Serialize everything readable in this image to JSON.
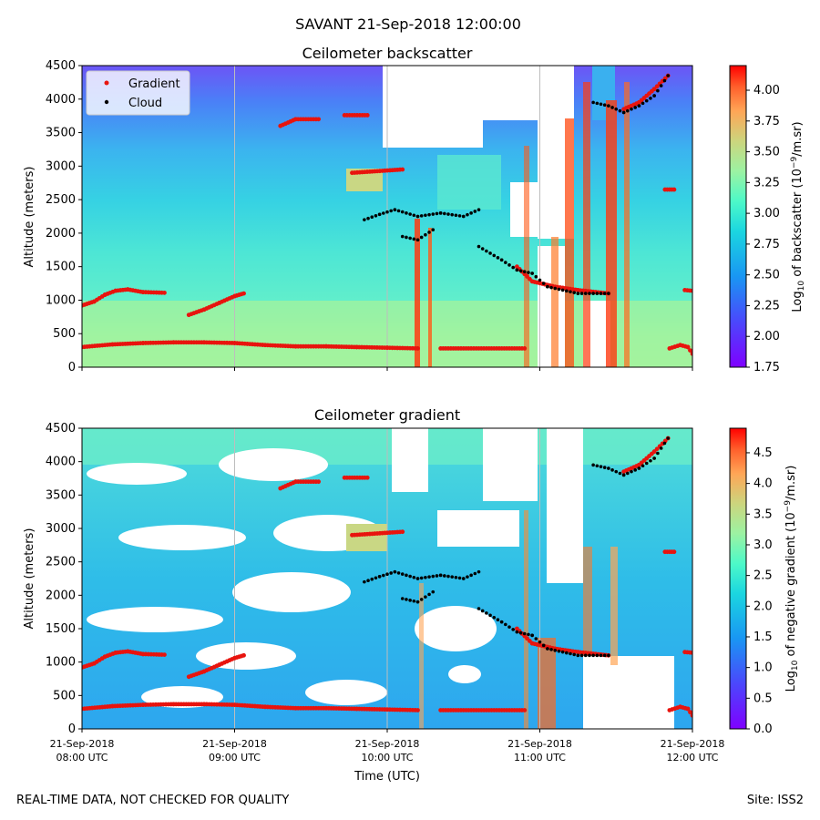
{
  "suptitle": "SAVANT 21-Sep-2018 12:00:00",
  "footer_left": "REAL-TIME DATA, NOT CHECKED FOR QUALITY",
  "footer_right": "Site: ISS2",
  "xlabel": "Time (UTC)",
  "x_ticks": [
    {
      "line1": "21-Sep-2018",
      "line2": "08:00 UTC",
      "hour": 8
    },
    {
      "line1": "21-Sep-2018",
      "line2": "09:00 UTC",
      "hour": 9
    },
    {
      "line1": "21-Sep-2018",
      "line2": "10:00 UTC",
      "hour": 10
    },
    {
      "line1": "21-Sep-2018",
      "line2": "11:00 UTC",
      "hour": 11
    },
    {
      "line1": "21-Sep-2018",
      "line2": "12:00 UTC",
      "hour": 12
    }
  ],
  "legend": {
    "placement": "top-left",
    "gradient": "Gradient",
    "cloud": "Cloud"
  },
  "colors": {
    "gradient_marker": "#e8140e",
    "cloud_marker": "#000000",
    "colormap": "rainbow"
  },
  "chart_data": [
    {
      "type": "heatmap",
      "title": "Ceilometer backscatter",
      "ylabel": "Altitude (meters)",
      "xlim_hours": [
        8,
        12
      ],
      "ylim": [
        0,
        4500
      ],
      "y_ticks": [
        0,
        500,
        1000,
        1500,
        2000,
        2500,
        3000,
        3500,
        4000,
        4500
      ],
      "colorbar": {
        "label": "Log10 of backscatter (10^-9/m.sr)",
        "range": [
          1.75,
          4.2
        ],
        "ticks": [
          1.75,
          2.0,
          2.25,
          2.5,
          2.75,
          3.0,
          3.25,
          3.5,
          3.75,
          4.0
        ],
        "tick_labels": [
          "1.75",
          "2.00",
          "2.25",
          "2.50",
          "2.75",
          "3.00",
          "3.25",
          "3.50",
          "3.75",
          "4.00"
        ]
      },
      "gradient_layers": [
        {
          "x": [
            8.0,
            8.2,
            8.4,
            8.6,
            8.8,
            9.0,
            9.2,
            9.4,
            9.6,
            9.8,
            10.0,
            10.2
          ],
          "y": [
            300,
            340,
            360,
            370,
            370,
            360,
            330,
            310,
            310,
            300,
            290,
            280
          ]
        },
        {
          "x": [
            8.0,
            8.08,
            8.15,
            8.22,
            8.3,
            8.4,
            8.54
          ],
          "y": [
            920,
            980,
            1080,
            1140,
            1160,
            1120,
            1110
          ]
        },
        {
          "x": [
            8.7,
            8.8,
            8.9,
            9.0,
            9.06
          ],
          "y": [
            780,
            860,
            960,
            1060,
            1100
          ]
        },
        {
          "x": [
            9.3,
            9.4,
            9.55
          ],
          "y": [
            3600,
            3700,
            3700
          ]
        },
        {
          "x": [
            9.72,
            9.87
          ],
          "y": [
            3760,
            3760
          ]
        },
        {
          "x": [
            9.77,
            10.1
          ],
          "y": [
            2900,
            2950
          ]
        },
        {
          "x": [
            10.35,
            10.9
          ],
          "y": [
            280,
            280
          ]
        },
        {
          "x": [
            10.85,
            10.95,
            11.1,
            11.25,
            11.45
          ],
          "y": [
            1500,
            1280,
            1200,
            1150,
            1100
          ]
        },
        {
          "x": [
            11.55,
            11.65,
            11.75,
            11.84
          ],
          "y": [
            3850,
            3950,
            4150,
            4350
          ]
        },
        {
          "x": [
            11.82,
            11.88
          ],
          "y": [
            2650,
            2650
          ]
        },
        {
          "x": [
            11.85,
            11.92,
            11.97,
            12.0
          ],
          "y": [
            280,
            330,
            300,
            200
          ]
        },
        {
          "x": [
            11.95,
            12.0
          ],
          "y": [
            1150,
            1140
          ]
        }
      ],
      "cloud_layers": [
        {
          "x": [
            9.85,
            9.95,
            10.05,
            10.2,
            10.35,
            10.5,
            10.6
          ],
          "y": [
            2200,
            2280,
            2350,
            2250,
            2300,
            2250,
            2350
          ]
        },
        {
          "x": [
            10.1,
            10.2,
            10.3
          ],
          "y": [
            1950,
            1900,
            2050
          ]
        },
        {
          "x": [
            10.6,
            10.75,
            10.85,
            10.95,
            11.05,
            11.25,
            11.45
          ],
          "y": [
            1800,
            1600,
            1450,
            1400,
            1200,
            1100,
            1100
          ]
        },
        {
          "x": [
            11.35,
            11.45,
            11.55,
            11.65,
            11.75,
            11.84
          ],
          "y": [
            3950,
            3900,
            3800,
            3900,
            4050,
            4350
          ]
        }
      ]
    },
    {
      "type": "heatmap",
      "title": "Ceilometer gradient",
      "ylabel": "Altitude (meters)",
      "xlabel": "Time (UTC)",
      "xlim_hours": [
        8,
        12
      ],
      "ylim": [
        0,
        4500
      ],
      "y_ticks": [
        0,
        500,
        1000,
        1500,
        2000,
        2500,
        3000,
        3500,
        4000,
        4500
      ],
      "colorbar": {
        "label": "Log10 of negative gradient (10^-9/m.sr)",
        "range": [
          0.0,
          4.9
        ],
        "ticks": [
          0.0,
          0.5,
          1.0,
          1.5,
          2.0,
          2.5,
          3.0,
          3.5,
          4.0,
          4.5
        ],
        "tick_labels": [
          "0.0",
          "0.5",
          "1.0",
          "1.5",
          "2.0",
          "2.5",
          "3.0",
          "3.5",
          "4.0",
          "4.5"
        ]
      }
    }
  ]
}
